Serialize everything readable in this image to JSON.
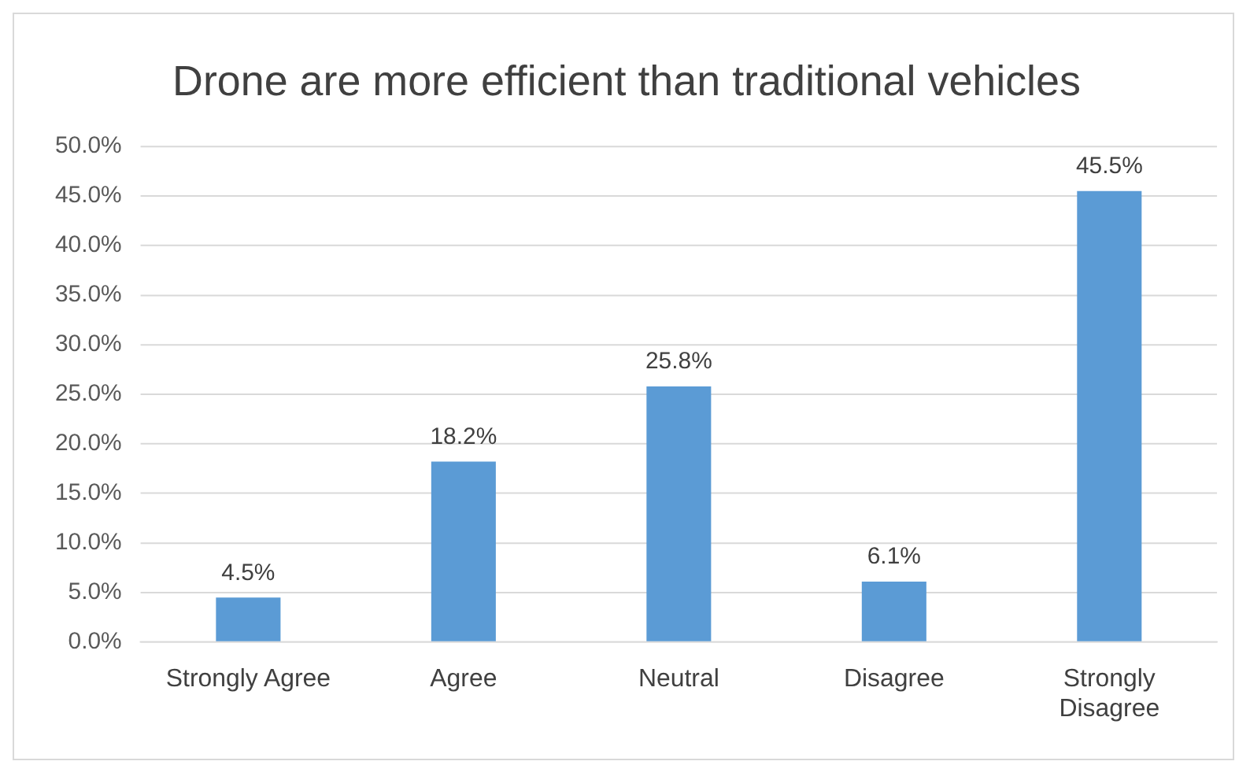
{
  "chart_data": {
    "type": "bar",
    "title": "Drone are more efficient than traditional vehicles",
    "categories": [
      "Strongly Agree",
      "Agree",
      "Neutral",
      "Disagree",
      "Strongly Disagree"
    ],
    "values": [
      4.5,
      18.2,
      25.8,
      6.1,
      45.5
    ],
    "color": "#5b9bd5",
    "value_labels": [
      "4.5%",
      "18.2%",
      "25.8%",
      "6.1%",
      "45.5%"
    ],
    "ylim": [
      0,
      50
    ],
    "yticks": [
      {
        "value": 0,
        "label": "0.0%"
      },
      {
        "value": 5,
        "label": "5.0%"
      },
      {
        "value": 10,
        "label": "10.0%"
      },
      {
        "value": 15,
        "label": "15.0%"
      },
      {
        "value": 20,
        "label": "20.0%"
      },
      {
        "value": 25,
        "label": "25.0%"
      },
      {
        "value": 30,
        "label": "30.0%"
      },
      {
        "value": 35,
        "label": "35.0%"
      },
      {
        "value": 40,
        "label": "40.0%"
      },
      {
        "value": 45,
        "label": "45.0%"
      },
      {
        "value": 50,
        "label": "50.0%"
      }
    ],
    "grid": "y"
  }
}
